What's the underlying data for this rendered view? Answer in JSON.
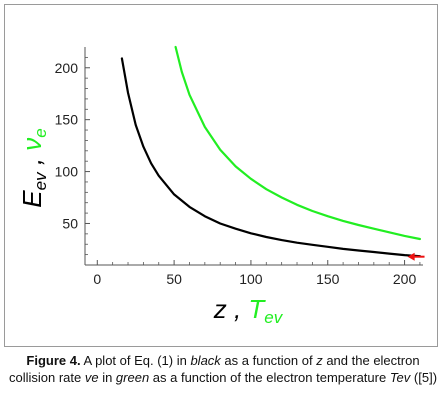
{
  "chart_data": {
    "type": "line",
    "x_ticks": [
      0,
      50,
      100,
      150,
      200
    ],
    "y_ticks": [
      50,
      100,
      150,
      200
    ],
    "xlim": [
      -8,
      212
    ],
    "ylim": [
      10,
      220
    ],
    "xlabel": {
      "main": "z",
      "sep": " , ",
      "tev_main": "T",
      "tev_sub": "ev"
    },
    "ylabel": {
      "main": "E",
      "main_sub": "ev",
      "sep": " , ",
      "nu_main": "ν",
      "nu_sub": "e"
    },
    "colors": {
      "black_series": "#000000",
      "green_series": "#22ee22",
      "arrow": "#ee1111",
      "axis": "#555555"
    },
    "series": [
      {
        "color": "black",
        "x": [
          16,
          20,
          25,
          30,
          35,
          40,
          50,
          60,
          70,
          80,
          90,
          100,
          110,
          120,
          130,
          140,
          150,
          160,
          170,
          180,
          190,
          200,
          210
        ],
        "y": [
          209,
          176,
          145,
          124,
          108,
          96,
          78,
          66,
          57,
          50,
          45,
          40.5,
          37,
          34,
          31.5,
          29.5,
          27.5,
          25.5,
          24,
          22.5,
          21,
          19.5,
          18.5
        ]
      },
      {
        "color": "green",
        "x": [
          51,
          55,
          60,
          70,
          80,
          90,
          100,
          110,
          120,
          130,
          140,
          150,
          160,
          170,
          180,
          190,
          200,
          210
        ],
        "y": [
          220,
          196,
          174,
          143,
          121,
          105,
          93,
          83,
          75,
          68,
          62,
          57,
          52.5,
          48.5,
          45,
          41.5,
          38,
          35
        ]
      }
    ],
    "annotation": {
      "type": "arrow",
      "color": "red",
      "x_from": 213,
      "x_to": 202,
      "y": 18
    }
  },
  "caption": {
    "label": "Figure 4.",
    "t1": " A plot of Eq. (1) in ",
    "black_word": "black",
    "t2": " as a function of ",
    "z_word": "z",
    "t3": " and the electron collision rate ",
    "ve_word": "ve",
    "t4": " in ",
    "green_word": "green",
    "t5": " as a function of the electron temperature ",
    "tev_word": "Tev",
    "t6": " ([5])"
  }
}
